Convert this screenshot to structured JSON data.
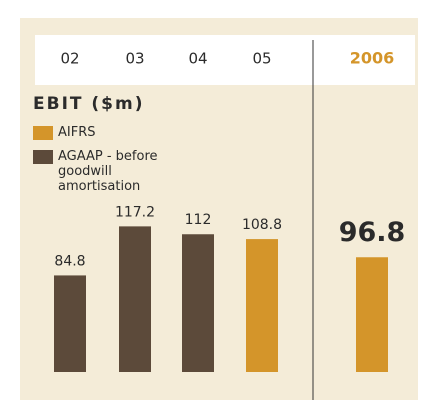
{
  "chart_data": {
    "type": "bar",
    "title": "EBIT ($m)",
    "categories": [
      "02",
      "03",
      "04",
      "05",
      "2006"
    ],
    "series": [
      {
        "name": "AIFRS",
        "color": "#d4952a",
        "values": [
          null,
          null,
          null,
          108.8,
          96.8
        ]
      },
      {
        "name": "AGAAP - before goodwill amortisation",
        "color": "#5c4a3a",
        "values": [
          84.8,
          117.2,
          112,
          null,
          null
        ]
      }
    ],
    "ylim": [
      21,
      130
    ]
  }
}
